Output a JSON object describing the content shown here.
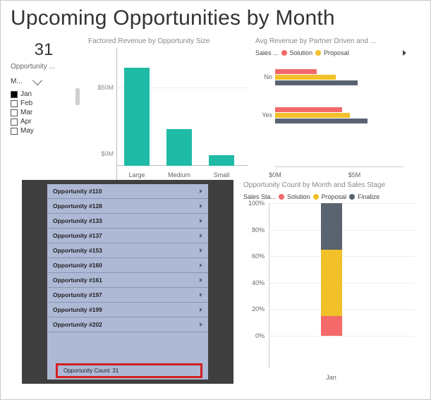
{
  "title": "Upcoming Opportunities by Month",
  "kpi": {
    "value": "31",
    "label": "Opportunity ..."
  },
  "slicer": {
    "header": "M...",
    "items": [
      {
        "label": "Jan",
        "selected": true
      },
      {
        "label": "Feb",
        "selected": false
      },
      {
        "label": "Mar",
        "selected": false
      },
      {
        "label": "Apr",
        "selected": false
      },
      {
        "label": "May",
        "selected": false
      }
    ]
  },
  "bar1": {
    "type": "bar",
    "title": "Factored Revenue by Opportunity Size",
    "categories": [
      "Large",
      "Medium",
      "Small"
    ],
    "values": [
      74,
      28,
      8
    ],
    "ymax": 80,
    "yticks": [
      {
        "label": "$50M",
        "value": 50
      },
      {
        "label": "$0M",
        "value": 0
      }
    ],
    "bar_color": "#1fbba6",
    "grid_color": "#eeeeee"
  },
  "bar2": {
    "type": "grouped-horizontal-bar",
    "title": "Avg Revenue by Partner Driven and ...",
    "legend_prefix": "Sales ...",
    "legend": [
      {
        "label": "Solution",
        "color": "#f46a6a"
      },
      {
        "label": "Proposal",
        "color": "#f2c029"
      }
    ],
    "categories": [
      "No",
      "Yes"
    ],
    "series": [
      {
        "color": "#f46a6a",
        "values": [
          2.6,
          4.2
        ]
      },
      {
        "color": "#f2c029",
        "values": [
          3.8,
          4.7
        ]
      },
      {
        "color": "#5a6370",
        "values": [
          5.2,
          5.8
        ]
      }
    ],
    "xmax": 8,
    "xticks": [
      {
        "label": "$0M",
        "value": 0
      },
      {
        "label": "$5M",
        "value": 5
      }
    ]
  },
  "list": {
    "rows": [
      "Opportunity #110",
      "Opportunity #128",
      "Opportunity #133",
      "Opportunity #137",
      "Opportunity #153",
      "Opportunity #160",
      "Opportunity #161",
      "Opportunity #197",
      "Opportunity #199",
      "Opportunity #202"
    ],
    "summary": "Opportunity Count: 31",
    "bg_dark": "#3f3f3f",
    "bg_row": "#aeb9d6",
    "highlight_border": "#d32020"
  },
  "stack": {
    "type": "stacked-100-bar",
    "title": "Opportunity Count by Month and Sales Stage",
    "legend_prefix": "Sales Sta...",
    "legend": [
      {
        "label": "Solution",
        "color": "#f46a6a"
      },
      {
        "label": "Proposal",
        "color": "#f2c029"
      },
      {
        "label": "Finalize",
        "color": "#5a6370"
      }
    ],
    "category": "Jan",
    "segments": [
      {
        "color": "#f46a6a",
        "pct": 15
      },
      {
        "color": "#f2c029",
        "pct": 50
      },
      {
        "color": "#5a6370",
        "pct": 35
      }
    ],
    "yticks": [
      "100%",
      "80%",
      "60%",
      "40%",
      "20%",
      "0%"
    ]
  }
}
